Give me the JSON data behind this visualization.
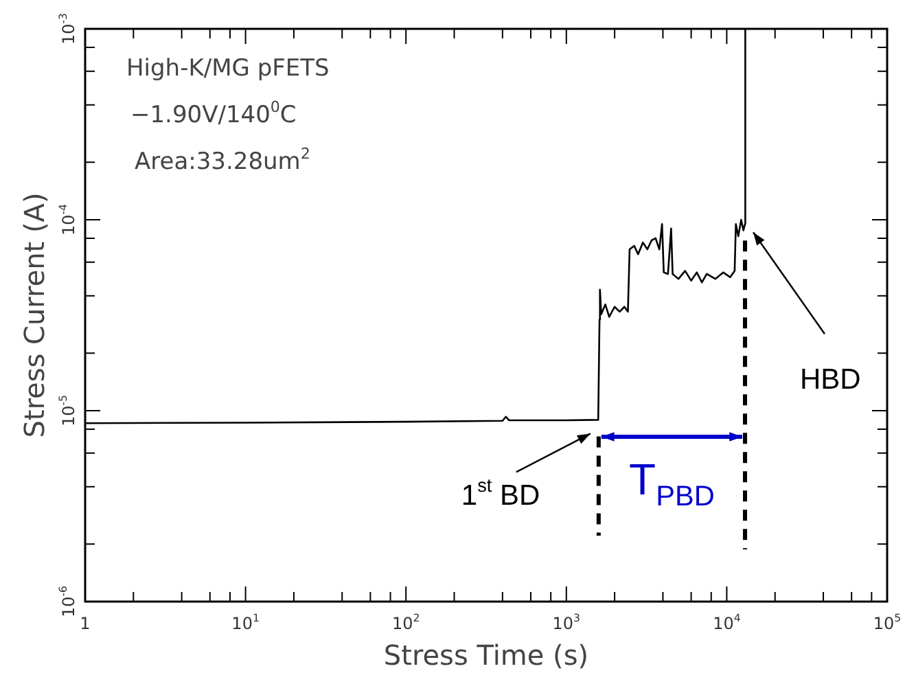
{
  "chart_data": {
    "type": "line",
    "xlabel": "Stress Time (s)",
    "ylabel": "Stress Current (A)",
    "log": "xy",
    "grid": false,
    "legend": false,
    "marker": "none",
    "line_style": "solid",
    "xlim": [
      1,
      100000
    ],
    "ylim": [
      1e-06,
      0.001
    ],
    "xticks": [
      1,
      {
        "value": 2,
        "label": null
      },
      {
        "value": 4,
        "label": null
      },
      {
        "value": 6,
        "label": null
      },
      {
        "value": 8,
        "label": null
      },
      {
        "value": 10,
        "label": "10$^{1}$"
      },
      {
        "value": 20,
        "label": null
      },
      {
        "value": 40,
        "label": null
      },
      {
        "value": 60,
        "label": null
      },
      {
        "value": 80,
        "label": null
      },
      {
        "value": 100,
        "label": "10$^{2}$"
      },
      {
        "value": 200,
        "label": null
      },
      {
        "value": 400,
        "label": null
      },
      {
        "value": 600,
        "label": null
      },
      {
        "value": 800,
        "label": null
      },
      {
        "value": 1000,
        "label": "10$^{3}$"
      },
      {
        "value": 2000,
        "label": null
      },
      {
        "value": 4000,
        "label": null
      },
      {
        "value": 6000,
        "label": null
      },
      {
        "value": 8000,
        "label": null
      },
      {
        "value": 10000,
        "label": "10$^{4}$"
      },
      {
        "value": 20000,
        "label": null
      },
      {
        "value": 40000,
        "label": null
      },
      {
        "value": 60000,
        "label": null
      },
      {
        "value": 80000,
        "label": null
      },
      {
        "value": 100000,
        "label": "10$^{5}$"
      }
    ],
    "yticks": [
      {
        "value": 1e-06,
        "label": "10$^{-6}$"
      },
      {
        "value": 2e-06,
        "label": null
      },
      {
        "value": 4e-06,
        "label": null
      },
      {
        "value": 6e-06,
        "label": null
      },
      {
        "value": 8e-06,
        "label": null
      },
      {
        "value": 1e-05,
        "label": "10$^{-5}$"
      },
      {
        "value": 2e-05,
        "label": null
      },
      {
        "value": 4e-05,
        "label": null
      },
      {
        "value": 6e-05,
        "label": null
      },
      {
        "value": 8e-05,
        "label": null
      },
      {
        "value": 0.0001,
        "label": "10$^{-4}$"
      },
      {
        "value": 0.0002,
        "label": null
      },
      {
        "value": 0.0004,
        "label": null
      },
      {
        "value": 0.0006,
        "label": null
      },
      {
        "value": 0.0008,
        "label": null
      },
      {
        "value": 0.001,
        "label": "10$^{-3}$"
      }
    ],
    "series": [
      {
        "color": "#000000",
        "x": [
          1,
          10,
          100,
          400,
          420,
          440,
          1000,
          1580,
          1610,
          1620,
          1650,
          1750,
          1850,
          2000,
          2150,
          2300,
          2420,
          2480,
          2650,
          2800,
          3000,
          3200,
          3400,
          3600,
          3800,
          3950,
          4050,
          4300,
          4500,
          4600,
          5000,
          5500,
          6000,
          6500,
          7000,
          7500,
          8500,
          9500,
          10500,
          11200,
          11400,
          11800,
          12300,
          12700,
          13000,
          13050
        ],
        "values": [
          8.6e-06,
          8.65e-06,
          8.75e-06,
          8.85e-06,
          9.3e-06,
          8.9e-06,
          8.9e-06,
          8.95e-06,
          3e-05,
          4.3e-05,
          3.2e-05,
          3.6e-05,
          3.1e-05,
          3.5e-05,
          3.3e-05,
          3.5e-05,
          3.3e-05,
          7e-05,
          7.3e-05,
          6.6e-05,
          7.6e-05,
          7e-05,
          7.8e-05,
          8e-05,
          7e-05,
          9.5e-05,
          5.3e-05,
          5.2e-05,
          9e-05,
          5.2e-05,
          4.9e-05,
          5.4e-05,
          4.8e-05,
          5.3e-05,
          4.7e-05,
          5.2e-05,
          4.9e-05,
          5.3e-05,
          5e-05,
          5.4e-05,
          9.5e-05,
          8.2e-05,
          0.0001,
          8.8e-05,
          9.5e-05,
          0.001
        ]
      }
    ],
    "ref_lines": [
      {
        "axis": "x",
        "value": 1590,
        "line_style": "dashed",
        "color": "#000000"
      },
      {
        "axis": "x",
        "value": 13000,
        "line_style": "dashed",
        "color": "#000000"
      }
    ],
    "annotations": [
      "High-K/MG pFETS",
      "−1.90V/140$^{0}$C",
      "Area:33.28um$^{2}$",
      "1$^{st}$ BD",
      {
        "text": "HBD",
        "x": 13000,
        "y": 9.5e-05
      },
      {
        "text": "T$_{PBD}$",
        "x": 1590,
        "y": 7.3e-06
      }
    ]
  }
}
